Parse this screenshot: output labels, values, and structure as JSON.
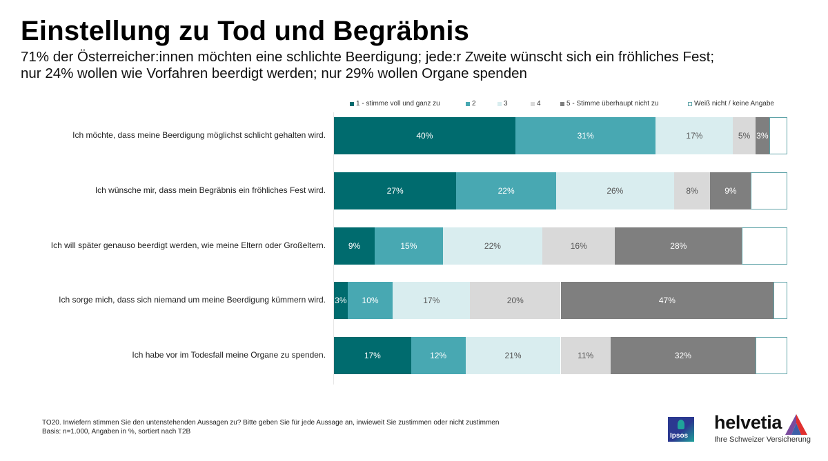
{
  "header": {
    "title": "Einstellung zu Tod und Begräbnis",
    "subtitle_line1": "71% der Österreicher:innen möchten eine schlichte Beerdigung; jede:r Zweite wünscht sich ein fröhliches Fest;",
    "subtitle_line2": "nur 24% wollen wie Vorfahren beerdigt werden; nur 29% wollen Organe spenden"
  },
  "chart_data": {
    "type": "bar",
    "orientation": "horizontal",
    "stacked": true,
    "title": "Einstellung zu Tod und Begräbnis",
    "xlabel": "",
    "ylabel": "",
    "xlim": [
      0,
      100
    ],
    "unit": "%",
    "legend_position": "top",
    "categories": [
      "Ich möchte, dass meine Beerdigung möglichst schlicht gehalten wird.",
      "Ich wünsche mir, dass mein Begräbnis ein fröhliches Fest wird.",
      "Ich will später genauso beerdigt werden, wie meine Eltern oder Großeltern.",
      "Ich sorge mich, dass sich niemand um meine Beerdigung kümmern wird.",
      "Ich habe vor im Todesfall meine Organe zu spenden."
    ],
    "series": [
      {
        "name": "1 - stimme voll und ganz zu",
        "color": "#006b6e",
        "label_color": "#ffffff",
        "values": [
          40,
          27,
          9,
          3,
          17
        ]
      },
      {
        "name": "2",
        "color": "#48a8b2",
        "label_color": "#ffffff",
        "values": [
          31,
          22,
          15,
          10,
          12
        ]
      },
      {
        "name": "3",
        "color": "#d9edef",
        "label_color": "#555555",
        "values": [
          17,
          26,
          22,
          17,
          21
        ]
      },
      {
        "name": "4",
        "color": "#d9d9d9",
        "label_color": "#555555",
        "values": [
          5,
          8,
          16,
          20,
          11
        ]
      },
      {
        "name": "5 - Stimme überhaupt nicht zu",
        "color": "#7f7f7f",
        "label_color": "#ffffff",
        "values": [
          3,
          9,
          28,
          47,
          32
        ]
      },
      {
        "name": "Weiß nicht / keine Angabe",
        "color": "#ffffff",
        "border": "#5fa3a8",
        "label_color": "#555555",
        "values": [
          4,
          8,
          10,
          3,
          7
        ],
        "labels_shown": false
      }
    ]
  },
  "footnote": {
    "line1": "TO20. Inwiefern stimmen Sie den untenstehenden Aussagen zu? Bitte geben Sie für jede Aussage an, inwieweit Sie zustimmen oder nicht zustimmen",
    "line2": "Basis: n=1.000, Angaben in %, sortiert nach T2B"
  },
  "logos": {
    "ipsos": "Ipsos",
    "helvetia": "helvetia",
    "helvetia_tagline": "Ihre Schweizer Versicherung"
  }
}
